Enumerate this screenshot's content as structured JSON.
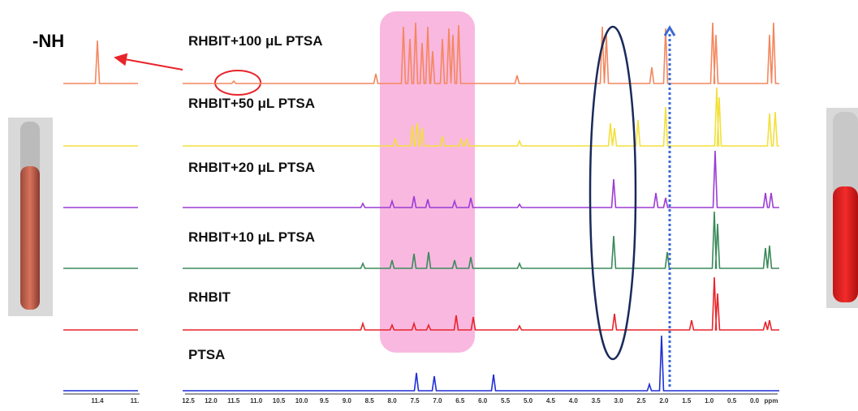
{
  "inset": {
    "label": "-NH",
    "ticks": [
      "11.4",
      "11."
    ]
  },
  "spectra": [
    {
      "label": "RHBIT+100 μL PTSA",
      "color": "#f4875e"
    },
    {
      "label": "RHBIT+50 μL PTSA",
      "color": "#f2e03a"
    },
    {
      "label": "RHBIT+20 μL PTSA",
      "color": "#9b3cd6"
    },
    {
      "label": "RHBIT+10 μL PTSA",
      "color": "#3a8a5a"
    },
    {
      "label": "RHBIT",
      "color": "#e8242b"
    },
    {
      "label": "PTSA",
      "color": "#1f2fd6"
    }
  ],
  "axis": {
    "ticks": [
      "12.5",
      "12.0",
      "11.5",
      "11.0",
      "10.5",
      "10.0",
      "9.5",
      "9.0",
      "8.5",
      "8.0",
      "7.5",
      "7.0",
      "6.5",
      "6.0",
      "5.5",
      "5.0",
      "4.5",
      "4.0",
      "3.5",
      "3.0",
      "2.5",
      "2.0",
      "1.5",
      "1.0",
      "0.5",
      "0.0"
    ],
    "unit": "ppm"
  }
}
